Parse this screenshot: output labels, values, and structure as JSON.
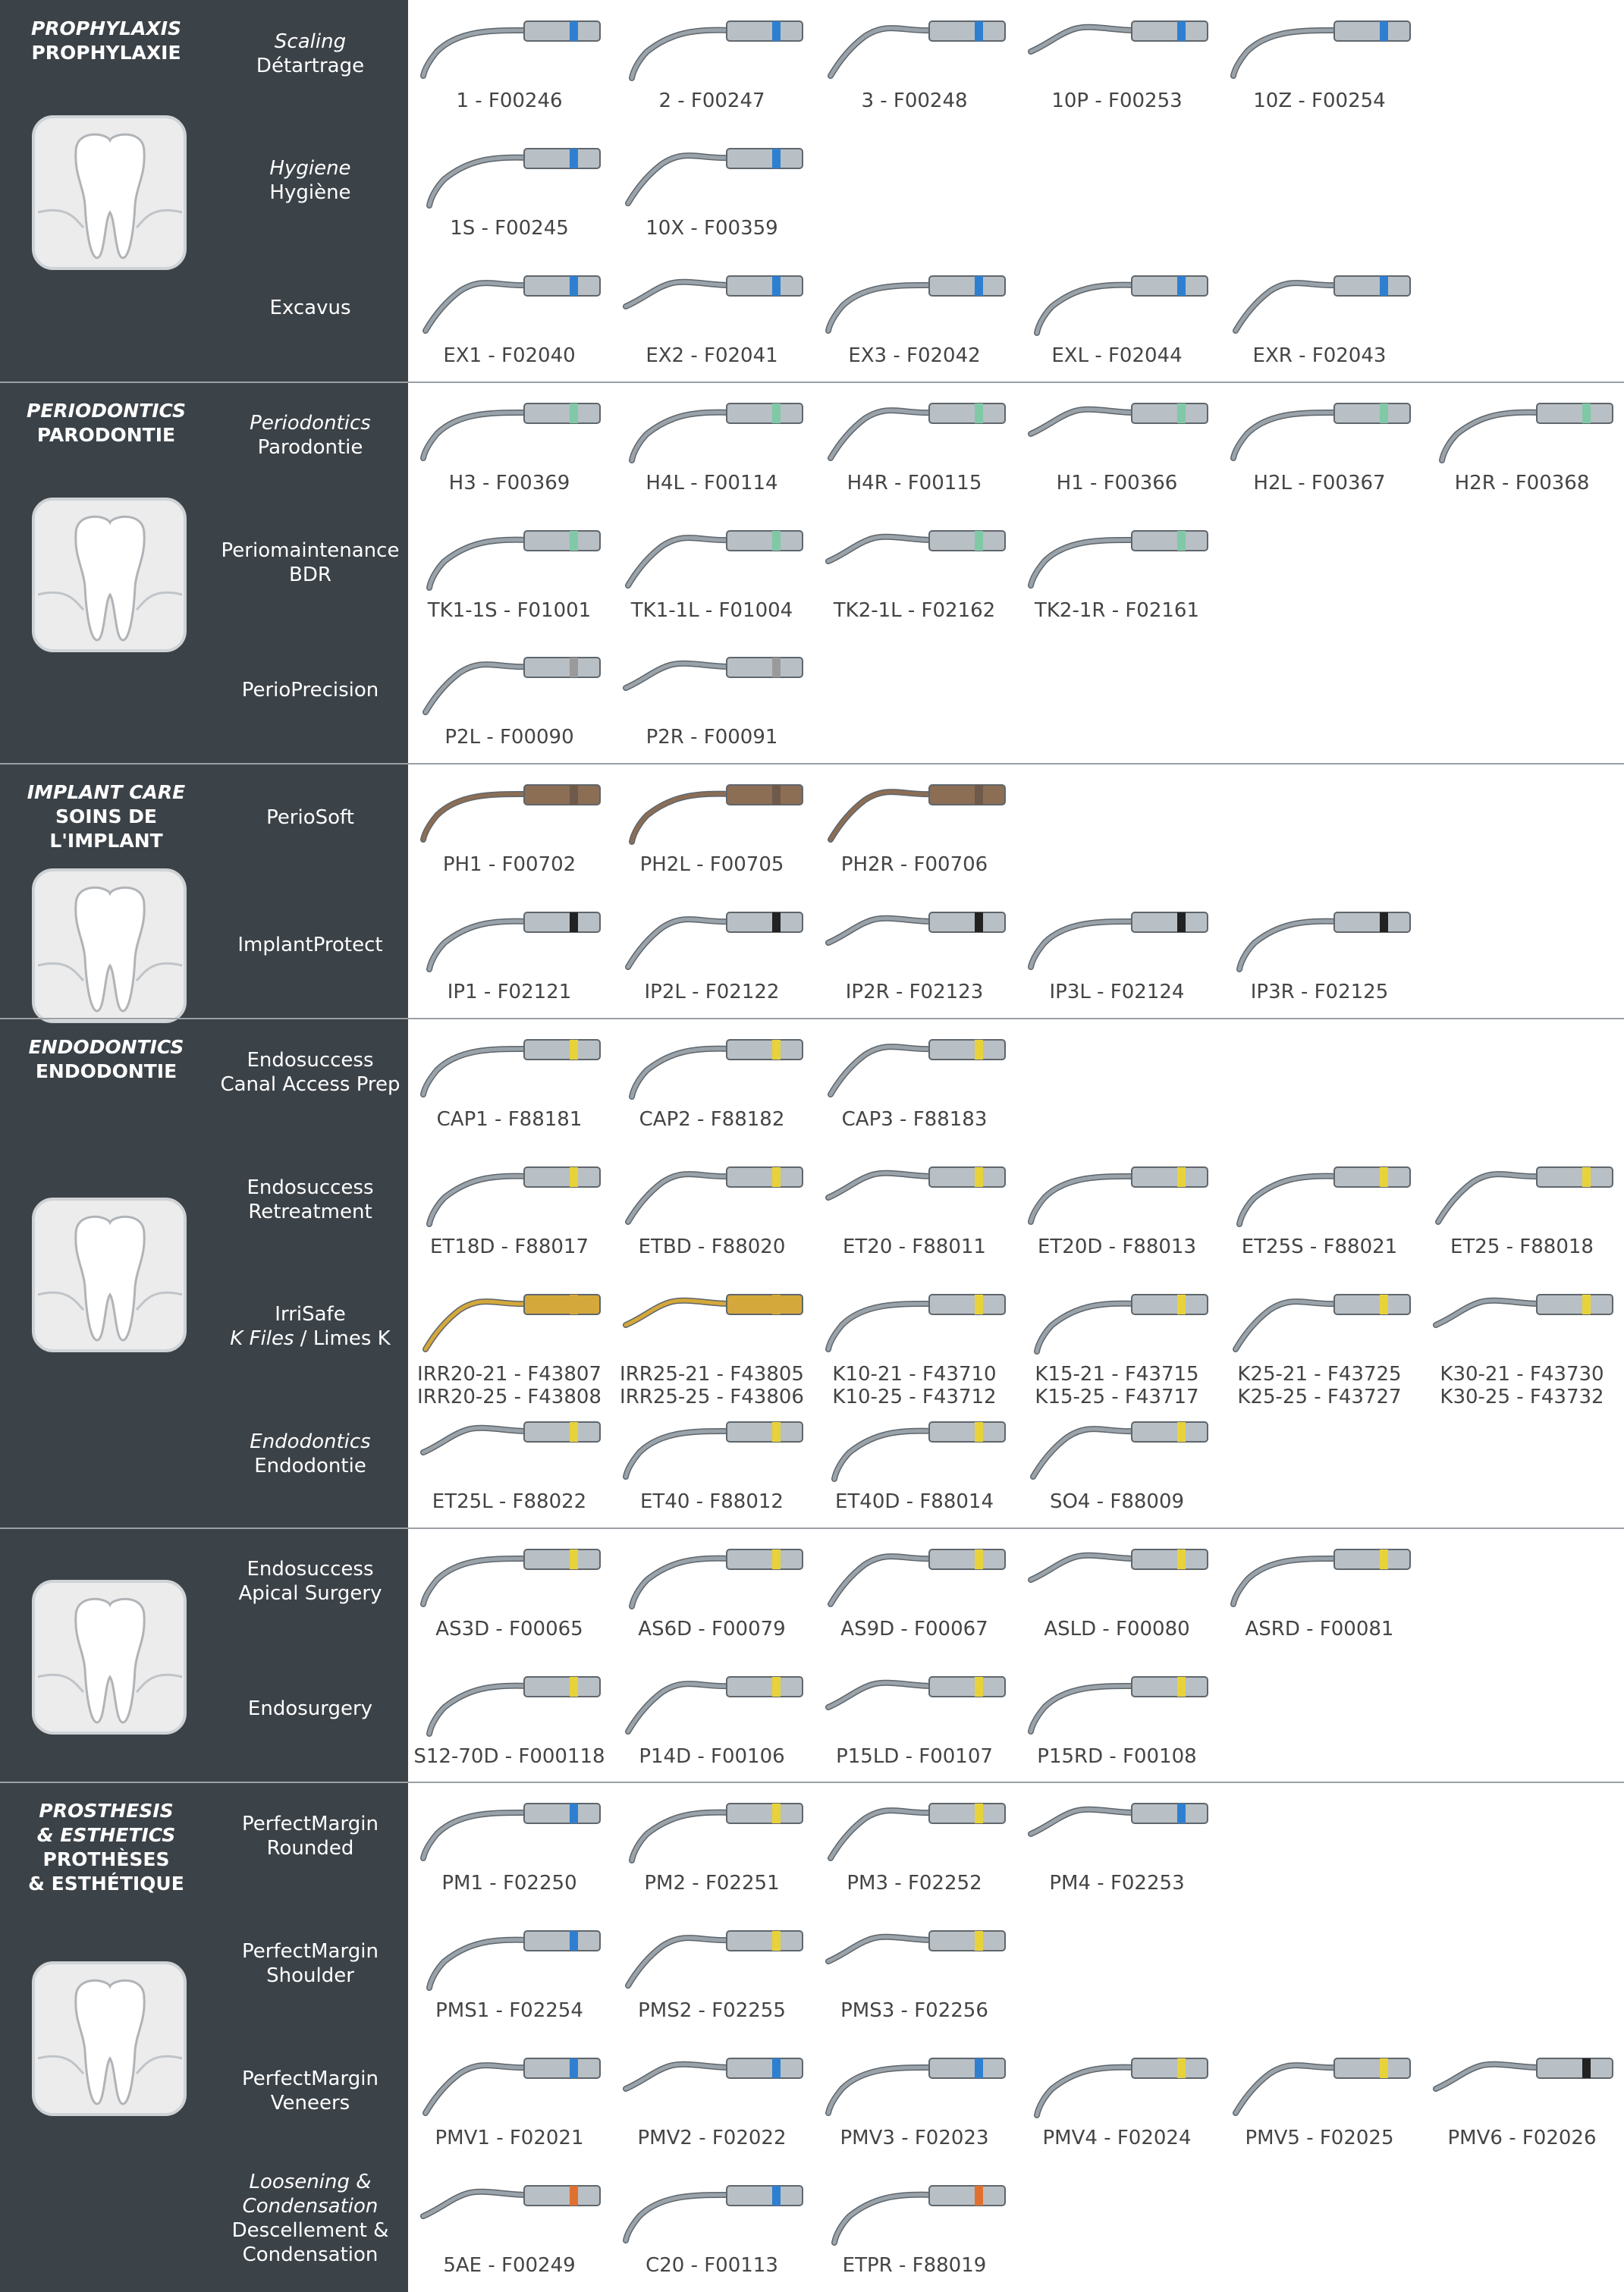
{
  "sections": [
    {
      "title": [
        {
          "t": "PROPHYLAXIS",
          "i": true
        },
        {
          "t": "PROPHYLAXIE"
        }
      ],
      "rows": [
        {
          "label": [
            [
              {
                "t": "Scaling",
                "i": true
              }
            ],
            [
              {
                "t": "Détartrage"
              }
            ]
          ],
          "items": [
            {
              "label": [
                "1 - F00246"
              ],
              "band": "#2f7fd0"
            },
            {
              "label": [
                "2 - F00247"
              ],
              "band": "#2f7fd0"
            },
            {
              "label": [
                "3 - F00248"
              ],
              "band": "#2f7fd0"
            },
            {
              "label": [
                "10P - F00253"
              ],
              "band": "#2f7fd0"
            },
            {
              "label": [
                "10Z - F00254"
              ],
              "band": "#2f7fd0"
            }
          ]
        },
        {
          "label": [
            [
              {
                "t": "Hygiene",
                "i": true
              }
            ],
            [
              {
                "t": "Hygiène"
              }
            ]
          ],
          "items": [
            {
              "label": [
                "1S - F00245"
              ],
              "band": "#2f7fd0"
            },
            {
              "label": [
                "10X - F00359"
              ],
              "band": "#2f7fd0"
            }
          ]
        },
        {
          "label": [
            [
              {
                "t": "Excavus"
              }
            ]
          ],
          "items": [
            {
              "label": [
                "EX1 - F02040"
              ],
              "band": "#2f7fd0"
            },
            {
              "label": [
                "EX2 - F02041"
              ],
              "band": "#2f7fd0"
            },
            {
              "label": [
                "EX3 - F02042"
              ],
              "band": "#2f7fd0"
            },
            {
              "label": [
                "EXL - F02044"
              ],
              "band": "#2f7fd0"
            },
            {
              "label": [
                "EXR - F02043"
              ],
              "band": "#2f7fd0"
            }
          ]
        }
      ]
    },
    {
      "title": [
        {
          "t": "PERIODONTICS",
          "i": true
        },
        {
          "t": "PARODONTIE"
        }
      ],
      "rows": [
        {
          "label": [
            [
              {
                "t": "Periodontics",
                "i": true
              }
            ],
            [
              {
                "t": "Parodontie"
              }
            ]
          ],
          "items": [
            {
              "label": [
                "H3 - F00369"
              ],
              "band": "#7fc9a6"
            },
            {
              "label": [
                "H4L - F00114"
              ],
              "band": "#7fc9a6"
            },
            {
              "label": [
                "H4R - F00115"
              ],
              "band": "#7fc9a6"
            },
            {
              "label": [
                "H1 - F00366"
              ],
              "band": "#7fc9a6"
            },
            {
              "label": [
                "H2L - F00367"
              ],
              "band": "#7fc9a6"
            },
            {
              "label": [
                "H2R - F00368"
              ],
              "band": "#7fc9a6"
            }
          ]
        },
        {
          "label": [
            [
              {
                "t": "Periomaintenance"
              }
            ],
            [
              {
                "t": "BDR"
              }
            ]
          ],
          "items": [
            {
              "label": [
                "TK1-1S - F01001"
              ],
              "band": "#7fc9a6"
            },
            {
              "label": [
                "TK1-1L - F01004"
              ],
              "band": "#7fc9a6"
            },
            {
              "label": [
                "TK2-1L - F02162"
              ],
              "band": "#7fc9a6"
            },
            {
              "label": [
                "TK2-1R - F02161"
              ],
              "band": "#7fc9a6"
            }
          ]
        },
        {
          "label": [
            [
              {
                "t": "PerioPrecision"
              }
            ]
          ],
          "items": [
            {
              "label": [
                "P2L - F00090"
              ],
              "band": "#9a9a9a"
            },
            {
              "label": [
                "P2R - F00091"
              ],
              "band": "#9a9a9a"
            }
          ]
        }
      ]
    },
    {
      "title": [
        {
          "t": "IMPLANT CARE",
          "i": true
        },
        {
          "t": "SOINS DE"
        },
        {
          "t": "L'IMPLANT"
        }
      ],
      "rows": [
        {
          "label": [
            [
              {
                "t": "PerioSoft"
              }
            ]
          ],
          "items": [
            {
              "label": [
                "PH1 - F00702"
              ],
              "band": "#6e5a4a",
              "shaft": "#8c6e55"
            },
            {
              "label": [
                "PH2L - F00705"
              ],
              "band": "#6e5a4a",
              "shaft": "#8c6e55"
            },
            {
              "label": [
                "PH2R - F00706"
              ],
              "band": "#6e5a4a",
              "shaft": "#8c6e55"
            }
          ]
        },
        {
          "label": [
            [
              {
                "t": "ImplantProtect"
              }
            ]
          ],
          "items": [
            {
              "label": [
                "IP1 - F02121"
              ],
              "band": "#222222"
            },
            {
              "label": [
                "IP2L - F02122"
              ],
              "band": "#222222"
            },
            {
              "label": [
                "IP2R - F02123"
              ],
              "band": "#222222"
            },
            {
              "label": [
                "IP3L - F02124"
              ],
              "band": "#222222"
            },
            {
              "label": [
                "IP3R - F02125"
              ],
              "band": "#222222"
            }
          ]
        }
      ]
    },
    {
      "title": [
        {
          "t": "ENDODONTICS",
          "i": true
        },
        {
          "t": "ENDODONTIE"
        }
      ],
      "rows": [
        {
          "label": [
            [
              {
                "t": "Endosuccess"
              }
            ],
            [
              {
                "t": "Canal Access Prep"
              }
            ]
          ],
          "items": [
            {
              "label": [
                "CAP1 - F88181"
              ],
              "band": "#e8d23a"
            },
            {
              "label": [
                "CAP2 - F88182"
              ],
              "band": "#e8d23a"
            },
            {
              "label": [
                "CAP3 - F88183"
              ],
              "band": "#e8d23a"
            }
          ]
        },
        {
          "label": [
            [
              {
                "t": "Endosuccess"
              }
            ],
            [
              {
                "t": "Retreatment"
              }
            ]
          ],
          "items": [
            {
              "label": [
                "ET18D - F88017"
              ],
              "band": "#e8d23a"
            },
            {
              "label": [
                "ETBD - F88020"
              ],
              "band": "#e8d23a"
            },
            {
              "label": [
                "ET20 - F88011"
              ],
              "band": "#e8d23a"
            },
            {
              "label": [
                "ET20D - F88013"
              ],
              "band": "#e8d23a"
            },
            {
              "label": [
                "ET25S - F88021"
              ],
              "band": "#e8d23a"
            },
            {
              "label": [
                "ET25 - F88018"
              ],
              "band": "#e8d23a"
            }
          ]
        },
        {
          "label": [
            [
              {
                "t": "IrriSafe"
              }
            ],
            [
              {
                "t": "K Files",
                "i": true
              },
              {
                "t": " / Limes K"
              }
            ]
          ],
          "items": [
            {
              "label": [
                "IRR20-21 - F43807",
                "IRR20-25 - F43808"
              ],
              "band": "#d4a83a",
              "shaft": "#d4a83a"
            },
            {
              "label": [
                "IRR25-21 - F43805",
                "IRR25-25 - F43806"
              ],
              "band": "#d4a83a",
              "shaft": "#d4a83a"
            },
            {
              "label": [
                "K10-21 - F43710",
                "K10-25 - F43712"
              ],
              "band": "#e8d23a"
            },
            {
              "label": [
                "K15-21 - F43715",
                "K15-25 - F43717"
              ],
              "band": "#e8d23a"
            },
            {
              "label": [
                "K25-21 - F43725",
                "K25-25 - F43727"
              ],
              "band": "#e8d23a"
            },
            {
              "label": [
                "K30-21 - F43730",
                "K30-25 - F43732"
              ],
              "band": "#e8d23a"
            }
          ]
        },
        {
          "label": [
            [
              {
                "t": "Endodontics",
                "i": true
              }
            ],
            [
              {
                "t": "Endodontie"
              }
            ]
          ],
          "items": [
            {
              "label": [
                "ET25L - F88022"
              ],
              "band": "#e8d23a"
            },
            {
              "label": [
                "ET40 - F88012"
              ],
              "band": "#e8d23a"
            },
            {
              "label": [
                "ET40D - F88014"
              ],
              "band": "#e8d23a"
            },
            {
              "label": [
                "SO4 - F88009"
              ],
              "band": "#e8d23a"
            }
          ]
        }
      ]
    },
    {
      "rows": [
        {
          "label": [
            [
              {
                "t": "Endosuccess"
              }
            ],
            [
              {
                "t": "Apical Surgery"
              }
            ]
          ],
          "items": [
            {
              "label": [
                "AS3D - F00065"
              ],
              "band": "#e8d23a"
            },
            {
              "label": [
                "AS6D - F00079"
              ],
              "band": "#e8d23a"
            },
            {
              "label": [
                "AS9D - F00067"
              ],
              "band": "#e8d23a"
            },
            {
              "label": [
                "ASLD - F00080"
              ],
              "band": "#e8d23a"
            },
            {
              "label": [
                "ASRD - F00081"
              ],
              "band": "#e8d23a"
            }
          ]
        },
        {
          "label": [
            [
              {
                "t": "Endosurgery"
              }
            ]
          ],
          "items": [
            {
              "label": [
                "S12-70D - F000118"
              ],
              "band": "#e8d23a"
            },
            {
              "label": [
                "P14D - F00106"
              ],
              "band": "#e8d23a"
            },
            {
              "label": [
                "P15LD - F00107"
              ],
              "band": "#e8d23a"
            },
            {
              "label": [
                "P15RD - F00108"
              ],
              "band": "#e8d23a"
            }
          ]
        }
      ]
    },
    {
      "title": [
        {
          "t": "PROSTHESIS",
          "i": true
        },
        {
          "t": "& ESTHETICS",
          "i": true
        },
        {
          "t": "PROTHÈSES"
        },
        {
          "t": "& ESTHÉTIQUE"
        }
      ],
      "rows": [
        {
          "label": [
            [
              {
                "t": "PerfectMargin"
              }
            ],
            [
              {
                "t": "Rounded"
              }
            ]
          ],
          "items": [
            {
              "label": [
                "PM1 - F02250"
              ],
              "band": "#2f7fd0"
            },
            {
              "label": [
                "PM2 - F02251"
              ],
              "band": "#e8d23a"
            },
            {
              "label": [
                "PM3 - F02252"
              ],
              "band": "#e8d23a"
            },
            {
              "label": [
                "PM4 - F02253"
              ],
              "band": "#2f7fd0"
            }
          ]
        },
        {
          "label": [
            [
              {
                "t": "PerfectMargin"
              }
            ],
            [
              {
                "t": "Shoulder"
              }
            ]
          ],
          "items": [
            {
              "label": [
                "PMS1 - F02254"
              ],
              "band": "#2f7fd0"
            },
            {
              "label": [
                "PMS2 - F02255"
              ],
              "band": "#e8d23a"
            },
            {
              "label": [
                "PMS3 - F02256"
              ],
              "band": "#e8d23a"
            }
          ]
        },
        {
          "label": [
            [
              {
                "t": "PerfectMargin"
              }
            ],
            [
              {
                "t": "Veneers"
              }
            ]
          ],
          "items": [
            {
              "label": [
                "PMV1 - F02021"
              ],
              "band": "#2f7fd0"
            },
            {
              "label": [
                "PMV2 - F02022"
              ],
              "band": "#2f7fd0"
            },
            {
              "label": [
                "PMV3 - F02023"
              ],
              "band": "#2f7fd0"
            },
            {
              "label": [
                "PMV4 - F02024"
              ],
              "band": "#e8d23a"
            },
            {
              "label": [
                "PMV5 - F02025"
              ],
              "band": "#e8d23a"
            },
            {
              "label": [
                "PMV6 - F02026"
              ],
              "band": "#222222"
            }
          ]
        },
        {
          "label": [
            [
              {
                "t": "Loosening &",
                "i": true
              }
            ],
            [
              {
                "t": "Condensation",
                "i": true
              }
            ],
            [
              {
                "t": "Descellement &"
              }
            ],
            [
              {
                "t": "Condensation"
              }
            ]
          ],
          "items": [
            {
              "label": [
                "5AE - F00249"
              ],
              "band": "#e07030"
            },
            {
              "label": [
                "C20 - F00113"
              ],
              "band": "#2f7fd0"
            },
            {
              "label": [
                "ETPR - F88019"
              ],
              "band": "#e07030"
            }
          ]
        }
      ]
    }
  ]
}
